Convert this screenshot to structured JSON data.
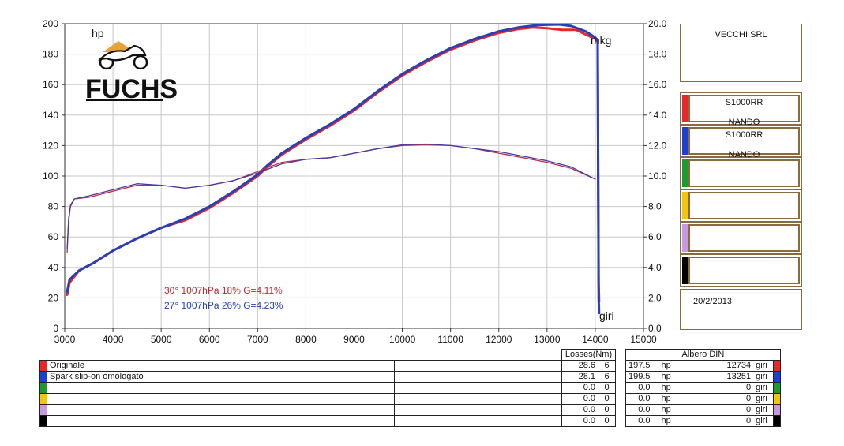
{
  "chart_data": {
    "type": "line",
    "title": "",
    "xlabel": "giri",
    "ylabel_left": "hp",
    "ylabel_right": "mkg",
    "xlim": [
      3000,
      15000
    ],
    "ylim_left": [
      0,
      200
    ],
    "ylim_right": [
      0,
      20
    ],
    "x_ticks": [
      3000,
      4000,
      5000,
      6000,
      7000,
      8000,
      9000,
      10000,
      11000,
      12000,
      13000,
      14000,
      15000
    ],
    "y_ticks_left": [
      0,
      20,
      40,
      60,
      80,
      100,
      120,
      140,
      160,
      180,
      200
    ],
    "y_ticks_right": [
      "0.0",
      "2.0",
      "4.0",
      "6.0",
      "8.0",
      "10.0",
      "12.0",
      "14.0",
      "16.0",
      "18.0",
      "20.0"
    ],
    "grid": true,
    "series": [
      {
        "name": "Originale",
        "color": "#e8262b",
        "axis": "left",
        "quantity": "power",
        "x": [
          3050,
          3100,
          3300,
          3600,
          4000,
          4500,
          5000,
          5500,
          6000,
          6500,
          7000,
          7200,
          7500,
          8000,
          8500,
          9000,
          9500,
          10000,
          10500,
          11000,
          11500,
          12000,
          12400,
          12700,
          13000,
          13300,
          13600,
          13800,
          14000,
          14050,
          14070,
          14080
        ],
        "y": [
          22,
          30,
          38,
          43,
          51,
          59,
          66,
          71,
          79,
          89,
          100,
          106,
          114,
          124,
          133,
          143,
          155,
          166,
          175,
          183,
          189,
          194,
          196.5,
          197.5,
          197,
          196,
          196,
          193,
          190,
          188,
          30,
          18
        ]
      },
      {
        "name": "Spark slip-on omologato",
        "color": "#2740b8",
        "axis": "left",
        "quantity": "power",
        "x": [
          3050,
          3100,
          3300,
          3600,
          4000,
          4500,
          5000,
          5500,
          6000,
          6500,
          7000,
          7200,
          7500,
          8000,
          8500,
          9000,
          9500,
          10000,
          10500,
          11000,
          11500,
          12000,
          12400,
          12800,
          13000,
          13251,
          13500,
          13800,
          14000,
          14050,
          14070,
          14080
        ],
        "y": [
          24,
          32,
          38,
          43,
          51,
          59,
          66,
          72,
          80,
          90,
          101,
          107,
          115,
          125,
          134,
          144,
          156,
          167,
          176,
          184,
          190,
          195,
          197.5,
          199,
          199.3,
          199.5,
          198.5,
          195,
          191,
          189,
          20,
          10
        ]
      },
      {
        "name": "Originale",
        "color": "#b5304a",
        "axis": "right",
        "quantity": "torque",
        "x": [
          3050,
          3080,
          3120,
          3200,
          3500,
          4000,
          4500,
          5000,
          5500,
          6000,
          6500,
          7000,
          7500,
          8000,
          8500,
          9000,
          9500,
          10000,
          10500,
          11000,
          11500,
          12000,
          12500,
          13000,
          13500,
          14000
        ],
        "y": [
          5.0,
          7.0,
          8.0,
          8.5,
          8.6,
          9.0,
          9.4,
          9.4,
          9.2,
          9.4,
          9.7,
          10.3,
          10.9,
          11.1,
          11.2,
          11.5,
          11.8,
          12.0,
          12.05,
          12.0,
          11.8,
          11.5,
          11.2,
          10.9,
          10.5,
          9.8
        ]
      },
      {
        "name": "Spark slip-on omologato",
        "color": "#4a3aa3",
        "axis": "right",
        "quantity": "torque",
        "x": [
          3050,
          3080,
          3120,
          3200,
          3500,
          4000,
          4500,
          5000,
          5500,
          6000,
          6500,
          7000,
          7500,
          8000,
          8500,
          9000,
          9500,
          10000,
          10500,
          11000,
          11500,
          12000,
          12500,
          13000,
          13500,
          14000
        ],
        "y": [
          5.2,
          7.2,
          8.1,
          8.5,
          8.7,
          9.1,
          9.5,
          9.4,
          9.2,
          9.4,
          9.7,
          10.2,
          10.8,
          11.1,
          11.2,
          11.5,
          11.8,
          12.05,
          12.1,
          12.0,
          11.8,
          11.6,
          11.3,
          11.0,
          10.6,
          9.8
        ]
      }
    ],
    "annotations": [
      {
        "text": "30°  1007hPa  18%    G=4.11%",
        "color": "#c0272d"
      },
      {
        "text": "27°  1007hPa  26%    G=4.23%",
        "color": "#2740b8"
      }
    ]
  },
  "logo": {
    "text": "FUCHS",
    "icon": "motorcycle-rider-icon"
  },
  "company": "VECCHI SRL",
  "date": "20/2/2013",
  "run_boxes": [
    {
      "color": "#e8262b",
      "line1": "S1000RR",
      "line2": "NANDO"
    },
    {
      "color": "#1d3fd6",
      "line1": "S1000RR",
      "line2": "NANDO"
    },
    {
      "color": "#1e9a30",
      "line1": "",
      "line2": ""
    },
    {
      "color": "#f4c410",
      "line1": "",
      "line2": ""
    },
    {
      "color": "#c79ae0",
      "line1": "",
      "line2": ""
    },
    {
      "color": "#000000",
      "line1": "",
      "line2": ""
    }
  ],
  "table": {
    "losses_header": "Losses(Nm)",
    "albero_header": "Albero DIN",
    "hp_unit": "hp",
    "rpm_unit": "giri",
    "rows": [
      {
        "color": "#e8262b",
        "name": "Originale",
        "loss": "28.6",
        "loss2": "6",
        "hp": "197.5",
        "rpm": "12734"
      },
      {
        "color": "#1d3fd6",
        "name": "Spark slip-on omologato",
        "loss": "28.1",
        "loss2": "6",
        "hp": "199.5",
        "rpm": "13251"
      },
      {
        "color": "#1e9a30",
        "name": "",
        "loss": "0.0",
        "loss2": "0",
        "hp": "0.0",
        "rpm": "0"
      },
      {
        "color": "#f4c410",
        "name": "",
        "loss": "0.0",
        "loss2": "0",
        "hp": "0.0",
        "rpm": "0"
      },
      {
        "color": "#c79ae0",
        "name": "",
        "loss": "0.0",
        "loss2": "0",
        "hp": "0.0",
        "rpm": "0"
      },
      {
        "color": "#000000",
        "name": "",
        "loss": "0.0",
        "loss2": "0",
        "hp": "0.0",
        "rpm": "0"
      }
    ]
  }
}
